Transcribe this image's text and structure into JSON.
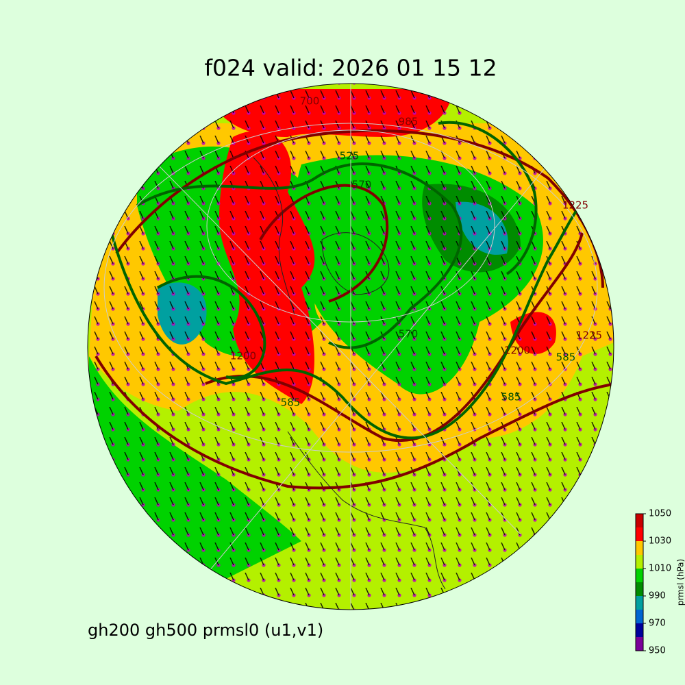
{
  "title": "f024 valid:   2026 01 15 12",
  "caption": "gh200 gh500 prmsl0 (u1,v1)",
  "colorbar": {
    "label": "prmsl (hPa)",
    "lim": [
      950,
      1050
    ],
    "bins": [
      950,
      960,
      970,
      980,
      990,
      1000,
      1010,
      1020,
      1030,
      1040,
      1050
    ],
    "colors": [
      "#7a0099",
      "#00009c",
      "#0064d2",
      "#00a0a0",
      "#008c00",
      "#00d200",
      "#b4f000",
      "#ffc800",
      "#ff0000",
      "#c80000"
    ],
    "ticks": [
      950,
      970,
      990,
      1010,
      1030,
      1050
    ]
  },
  "contour_labels": [
    700,
    985,
    525,
    1200,
    570,
    585,
    585,
    1200,
    1225,
    585,
    570,
    1225
  ]
}
